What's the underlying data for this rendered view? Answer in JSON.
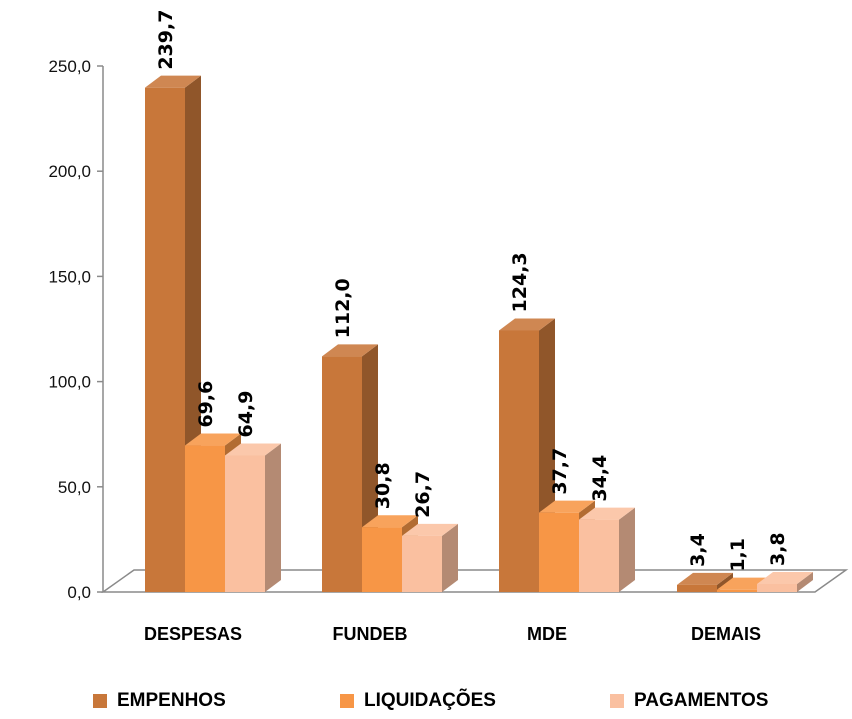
{
  "chart_data": {
    "type": "bar",
    "categories": [
      "DESPESAS",
      "FUNDEB",
      "MDE",
      "DEMAIS"
    ],
    "series": [
      {
        "name": "EMPENHOS",
        "values": [
          239.7,
          112.0,
          124.3,
          3.4
        ],
        "labels": [
          "239,7",
          "112,0",
          "124,3",
          "3,4"
        ],
        "color": "#C8773A"
      },
      {
        "name": "LIQUIDAÇÕES",
        "values": [
          69.6,
          30.8,
          37.7,
          1.1
        ],
        "labels": [
          "69,6",
          "30,8",
          "37,7",
          "1,1"
        ],
        "color": "#F79646"
      },
      {
        "name": "PAGAMENTOS",
        "values": [
          64.9,
          26.7,
          34.4,
          3.8
        ],
        "labels": [
          "64,9",
          "26,7",
          "34,4",
          "3,8"
        ],
        "color": "#FAC0A0"
      }
    ],
    "ylim": [
      0,
      250
    ],
    "yticks": [
      "0,0",
      "50,0",
      "100,0",
      "150,0",
      "200,0",
      "250,0"
    ],
    "style": "3d-clustered-column",
    "grid": false,
    "legend_position": "bottom"
  }
}
